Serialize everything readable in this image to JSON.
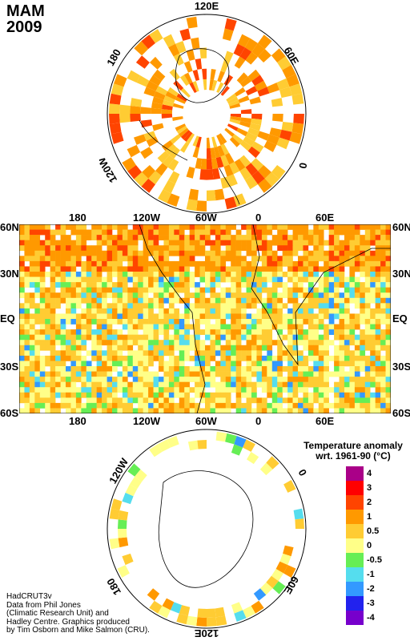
{
  "title": {
    "season": "MAM",
    "year": "2009"
  },
  "north_polar": {
    "labels": {
      "top": "120E",
      "right": "60E",
      "right_lower": "0",
      "left": "180",
      "left_lower": "120W"
    }
  },
  "world_map": {
    "top_lon_labels": [
      "180",
      "120W",
      "60W",
      "0",
      "60E"
    ],
    "bottom_lon_labels": [
      "180",
      "120W",
      "60W",
      "0",
      "60E"
    ],
    "lat_labels": [
      "60N",
      "30N",
      "EQ",
      "30S",
      "60S"
    ]
  },
  "south_polar": {
    "labels": {
      "bottom": "120E",
      "right": "0",
      "right_lower": "60E",
      "left": "120W",
      "left_lower": "180"
    }
  },
  "legend": {
    "title_line1": "Temperature anomaly",
    "title_line2": "wrt. 1961-90  (°C)",
    "items": [
      {
        "label": "4",
        "color": "#aa0088"
      },
      {
        "label": "3",
        "color": "#ff0000"
      },
      {
        "label": "2",
        "color": "#ff4400"
      },
      {
        "label": "1",
        "color": "#ff9900"
      },
      {
        "label": "0.5",
        "color": "#ffcc33"
      },
      {
        "label": "0",
        "color": "#ffff88"
      },
      {
        "label": "-0.5",
        "color": "#66ee55"
      },
      {
        "label": "-1",
        "color": "#55ddee"
      },
      {
        "label": "-2",
        "color": "#3399ff"
      },
      {
        "label": "-3",
        "color": "#2222ee"
      },
      {
        "label": "-4",
        "color": "#7700cc"
      }
    ]
  },
  "credits": {
    "line1": "HadCRUT3v",
    "line2": "Data from Phil Jones",
    "line3": "(Climatic Research Unit) and",
    "line4": "Hadley Centre.  Graphics produced",
    "line5": "by Tim Osborn and Mike Salmon (CRU)."
  }
}
